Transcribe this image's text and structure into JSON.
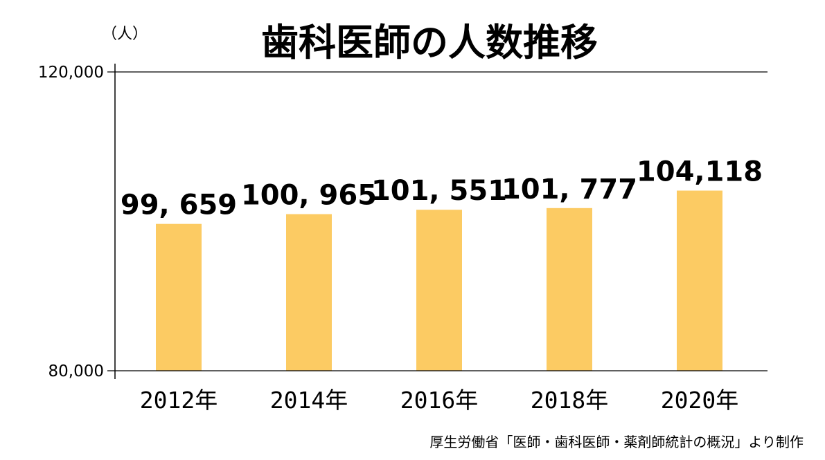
{
  "unit_label": "（人）",
  "source": "厚生労働省「医師・歯科医師・薬剤師統計の概況」より制作",
  "colors": {
    "bar": "#FCCB63",
    "axis": "#000000",
    "background": "#FFFFFF"
  },
  "chart_data": {
    "type": "bar",
    "title": "歯科医師の人数推移",
    "xlabel": "",
    "ylabel": "（人）",
    "categories": [
      "2012年",
      "2014年",
      "2016年",
      "2018年",
      "2020年"
    ],
    "values": [
      99659,
      100965,
      101551,
      101777,
      104118
    ],
    "value_labels": [
      "99, 659",
      "100, 965",
      "101, 551",
      "101, 777",
      "104,118"
    ],
    "ylim": [
      80000,
      120000
    ],
    "yticks": [
      80000,
      120000
    ],
    "ytick_labels": [
      "80,000",
      "120,000"
    ],
    "grid": false,
    "legend": "none"
  }
}
